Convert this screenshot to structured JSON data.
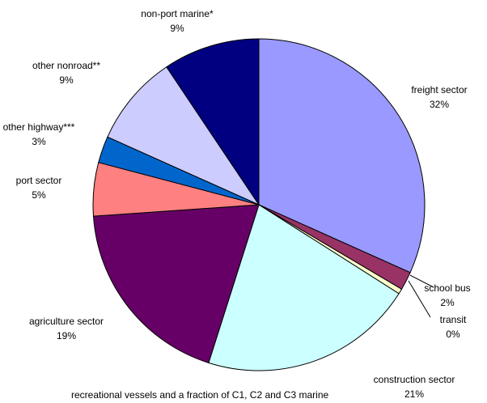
{
  "chart_data": {
    "type": "pie",
    "categories": [
      "freight sector",
      "school bus",
      "transit",
      "construction sector",
      "agriculture sector",
      "port sector",
      "other highway***",
      "other nonroad**",
      "non-port marine*"
    ],
    "values": [
      31.7,
      1.8,
      0.5,
      20.9,
      19.0,
      5.2,
      2.6,
      8.9,
      9.4
    ],
    "value_labels": [
      "32%",
      "2%",
      "0%",
      "21%",
      "19%",
      "5%",
      "3%",
      "9%",
      "9%"
    ],
    "colors": [
      "#9999ff",
      "#993366",
      "#ffffcc",
      "#ccffff",
      "#660066",
      "#ff8080",
      "#0066cc",
      "#ccccff",
      "#000080"
    ],
    "note": "recreational vessels and a fraction of C1, C2 and C3 marine"
  }
}
